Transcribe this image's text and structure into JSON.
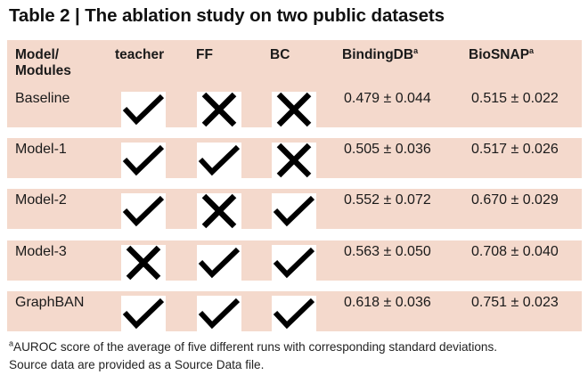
{
  "title": "Table 2 | The ablation study on two public datasets",
  "headers": {
    "model_line1": "Model/",
    "model_line2": "Modules",
    "teacher": "teacher",
    "ff": "FF",
    "bc": "BC",
    "bindingdb": "BindingDB",
    "biosnap": "BioSNAP",
    "footnote_mark": "a"
  },
  "rows": [
    {
      "name": "Baseline",
      "teacher": "check-icon",
      "ff": "cross-icon",
      "bc": "cross-icon",
      "bindingdb": "0.479 ± 0.044",
      "biosnap": "0.515 ± 0.022"
    },
    {
      "name": "Model-1",
      "teacher": "check-icon",
      "ff": "check-icon",
      "bc": "cross-icon",
      "bindingdb": "0.505 ± 0.036",
      "biosnap": "0.517 ± 0.026"
    },
    {
      "name": "Model-2",
      "teacher": "check-icon",
      "ff": "cross-icon",
      "bc": "check-icon",
      "bindingdb": "0.552 ± 0.072",
      "biosnap": "0.670 ± 0.029"
    },
    {
      "name": "Model-3",
      "teacher": "cross-icon",
      "ff": "check-icon",
      "bc": "check-icon",
      "bindingdb": "0.563 ± 0.050",
      "biosnap": "0.708 ± 0.040"
    },
    {
      "name": "GraphBAN",
      "teacher": "check-icon",
      "ff": "check-icon",
      "bc": "check-icon",
      "bindingdb": "0.618 ± 0.036",
      "biosnap": "0.751 ± 0.023"
    }
  ],
  "footnote": {
    "mark": "a",
    "line1": "AUROC score of the average of five different runs with corresponding standard deviations.",
    "line2": "Source data are provided as a Source Data file."
  },
  "colors": {
    "row_fill": "#f4d9cc",
    "text": "#1a1a1a"
  }
}
